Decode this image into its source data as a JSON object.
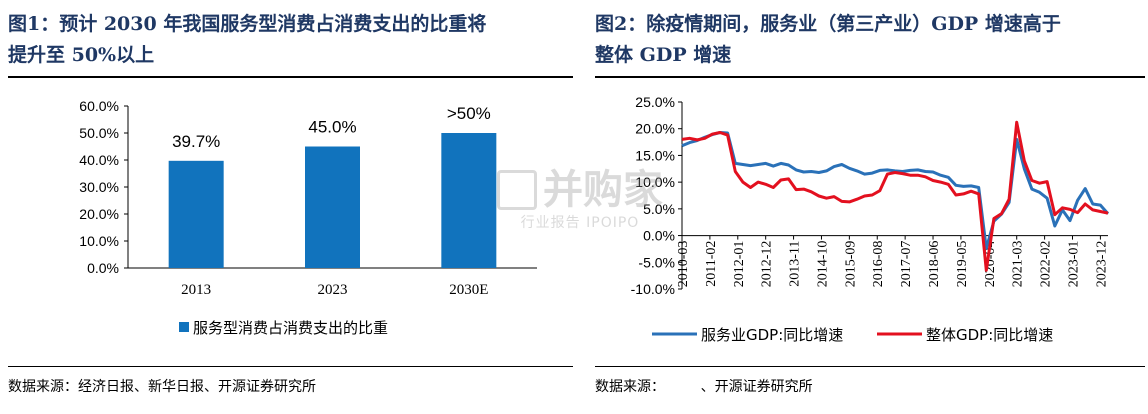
{
  "left_panel": {
    "title_lines": [
      "图1：预计 2030 年我国服务型消费占消费支出的比重将",
      "提升至 50%以上"
    ],
    "source": "数据来源：经济日报、新华日报、开源证券研究所"
  },
  "right_panel": {
    "title_lines": [
      "图2：除疫情期间，服务业（第三产业）GDP  增速高于",
      "整体 GDP 增速"
    ],
    "source": "数据来源：        、开源证券研究所"
  },
  "watermark": {
    "main": "并购家",
    "sub": "行业报告 IPOIPO"
  },
  "colors": {
    "title": "#1f3864",
    "bar": "#1173bd",
    "service_line": "#2a71b8",
    "overall_line": "#e3101f"
  },
  "chart_data": [
    {
      "type": "bar",
      "categories": [
        "2013",
        "2023",
        "2030E"
      ],
      "series": [
        {
          "name": "服务型消费占消费支出的比重",
          "values": [
            39.7,
            45.0,
            50.0
          ]
        }
      ],
      "data_labels": [
        "39.7%",
        "45.0%",
        ">50%"
      ],
      "yticks": [
        "60.0%",
        "50.0%",
        "40.0%",
        "30.0%",
        "20.0%",
        "10.0%",
        "0.0%"
      ],
      "ylim": [
        0,
        60
      ],
      "legend_position": "bottom"
    },
    {
      "type": "line",
      "x_range": [
        "2010-03",
        "2024-03"
      ],
      "xticks": [
        "2010-03",
        "2011-02",
        "2012-01",
        "2012-12",
        "2013-11",
        "2014-10",
        "2015-09",
        "2016-08",
        "2017-07",
        "2018-06",
        "2019-05",
        "2020-04",
        "2021-03",
        "2022-02",
        "2023-01",
        "2023-12"
      ],
      "yticks": [
        "25.0%",
        "20.0%",
        "15.0%",
        "10.0%",
        "5.0%",
        "0.0%",
        "-5.0%",
        "-10.0%"
      ],
      "ylim": [
        -10,
        25
      ],
      "legend_position": "bottom",
      "series": [
        {
          "name": "服务业GDP:同比增速",
          "points": [
            [
              "2010-03",
              16.8
            ],
            [
              "2010-06",
              17.4
            ],
            [
              "2010-09",
              17.8
            ],
            [
              "2010-12",
              18.4
            ],
            [
              "2011-03",
              18.9
            ],
            [
              "2011-06",
              19.3
            ],
            [
              "2011-09",
              19.2
            ],
            [
              "2011-12",
              13.5
            ],
            [
              "2012-03",
              13.3
            ],
            [
              "2012-06",
              13.1
            ],
            [
              "2012-09",
              13.3
            ],
            [
              "2012-12",
              13.5
            ],
            [
              "2013-03",
              13.0
            ],
            [
              "2013-06",
              13.5
            ],
            [
              "2013-09",
              13.2
            ],
            [
              "2013-12",
              12.3
            ],
            [
              "2014-03",
              11.9
            ],
            [
              "2014-06",
              12.0
            ],
            [
              "2014-09",
              11.8
            ],
            [
              "2014-12",
              12.1
            ],
            [
              "2015-03",
              12.9
            ],
            [
              "2015-06",
              13.3
            ],
            [
              "2015-09",
              12.6
            ],
            [
              "2015-12",
              12.1
            ],
            [
              "2016-03",
              11.5
            ],
            [
              "2016-06",
              11.7
            ],
            [
              "2016-09",
              12.2
            ],
            [
              "2016-12",
              12.3
            ],
            [
              "2017-03",
              12.1
            ],
            [
              "2017-06",
              12.0
            ],
            [
              "2017-09",
              12.2
            ],
            [
              "2017-12",
              12.3
            ],
            [
              "2018-03",
              12.0
            ],
            [
              "2018-06",
              11.9
            ],
            [
              "2018-09",
              11.3
            ],
            [
              "2018-12",
              10.9
            ],
            [
              "2019-03",
              9.4
            ],
            [
              "2019-06",
              9.2
            ],
            [
              "2019-09",
              9.3
            ],
            [
              "2019-12",
              9.0
            ],
            [
              "2020-03",
              -2.4
            ],
            [
              "2020-06",
              2.7
            ],
            [
              "2020-09",
              4.0
            ],
            [
              "2020-12",
              6.2
            ],
            [
              "2021-03",
              18.0
            ],
            [
              "2021-06",
              12.5
            ],
            [
              "2021-09",
              8.7
            ],
            [
              "2021-12",
              8.1
            ],
            [
              "2022-03",
              7.0
            ],
            [
              "2022-06",
              1.8
            ],
            [
              "2022-09",
              4.8
            ],
            [
              "2022-12",
              2.8
            ],
            [
              "2023-03",
              6.6
            ],
            [
              "2023-06",
              8.8
            ],
            [
              "2023-09",
              5.9
            ],
            [
              "2023-12",
              5.7
            ],
            [
              "2024-03",
              4.1
            ]
          ]
        },
        {
          "name": "整体GDP:同比增速",
          "points": [
            [
              "2010-03",
              18.0
            ],
            [
              "2010-06",
              18.2
            ],
            [
              "2010-09",
              17.9
            ],
            [
              "2010-12",
              18.2
            ],
            [
              "2011-03",
              19.0
            ],
            [
              "2011-06",
              19.3
            ],
            [
              "2011-09",
              18.8
            ],
            [
              "2011-12",
              12.0
            ],
            [
              "2012-03",
              10.0
            ],
            [
              "2012-06",
              9.0
            ],
            [
              "2012-09",
              10.0
            ],
            [
              "2012-12",
              9.6
            ],
            [
              "2013-03",
              9.0
            ],
            [
              "2013-06",
              10.4
            ],
            [
              "2013-09",
              10.6
            ],
            [
              "2013-12",
              8.6
            ],
            [
              "2014-03",
              8.7
            ],
            [
              "2014-06",
              8.2
            ],
            [
              "2014-09",
              7.4
            ],
            [
              "2014-12",
              7.0
            ],
            [
              "2015-03",
              7.3
            ],
            [
              "2015-06",
              6.4
            ],
            [
              "2015-09",
              6.3
            ],
            [
              "2015-12",
              6.8
            ],
            [
              "2016-03",
              7.4
            ],
            [
              "2016-06",
              7.6
            ],
            [
              "2016-09",
              8.4
            ],
            [
              "2016-12",
              11.5
            ],
            [
              "2017-03",
              11.8
            ],
            [
              "2017-06",
              11.6
            ],
            [
              "2017-09",
              11.3
            ],
            [
              "2017-12",
              11.3
            ],
            [
              "2018-03",
              11.0
            ],
            [
              "2018-06",
              10.3
            ],
            [
              "2018-09",
              10.0
            ],
            [
              "2018-12",
              9.6
            ],
            [
              "2019-03",
              7.6
            ],
            [
              "2019-06",
              7.8
            ],
            [
              "2019-09",
              8.3
            ],
            [
              "2019-12",
              7.8
            ],
            [
              "2020-03",
              -6.5
            ],
            [
              "2020-06",
              3.2
            ],
            [
              "2020-09",
              4.1
            ],
            [
              "2020-12",
              6.8
            ],
            [
              "2021-03",
              21.2
            ],
            [
              "2021-06",
              14.0
            ],
            [
              "2021-09",
              10.3
            ],
            [
              "2021-12",
              9.8
            ],
            [
              "2022-03",
              10.1
            ],
            [
              "2022-06",
              3.9
            ],
            [
              "2022-09",
              5.2
            ],
            [
              "2022-12",
              4.9
            ],
            [
              "2023-03",
              4.3
            ],
            [
              "2023-06",
              5.9
            ],
            [
              "2023-09",
              4.8
            ],
            [
              "2023-12",
              4.5
            ],
            [
              "2024-03",
              4.2
            ]
          ]
        }
      ]
    }
  ]
}
